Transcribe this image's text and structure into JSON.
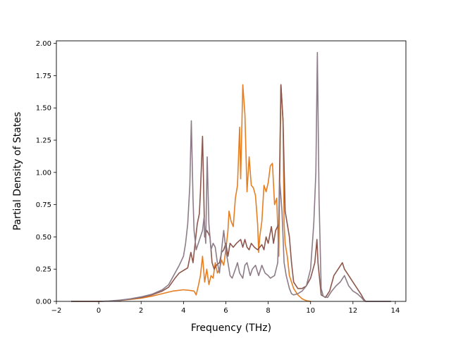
{
  "chart_data": {
    "type": "line",
    "title": "",
    "xlabel": "Frequency (THz)",
    "ylabel": "Partial Density of States",
    "xlim": [
      -2,
      14.5
    ],
    "ylim": [
      0,
      2.02
    ],
    "xticks": [
      "−2",
      "0",
      "2",
      "4",
      "6",
      "8",
      "10",
      "12",
      "14"
    ],
    "yticks": [
      "0.00",
      "0.25",
      "0.50",
      "0.75",
      "1.00",
      "1.25",
      "1.50",
      "1.75",
      "2.00"
    ],
    "grid": false,
    "legend": "none",
    "series": [
      {
        "color": "#e67e22",
        "points": [
          [
            -1.3,
            0
          ],
          [
            0,
            0
          ],
          [
            0.5,
            0.002
          ],
          [
            1,
            0.008
          ],
          [
            1.5,
            0.015
          ],
          [
            2,
            0.025
          ],
          [
            2.5,
            0.04
          ],
          [
            3,
            0.06
          ],
          [
            3.5,
            0.08
          ],
          [
            4,
            0.09
          ],
          [
            4.3,
            0.085
          ],
          [
            4.5,
            0.08
          ],
          [
            4.6,
            0.05
          ],
          [
            4.7,
            0.12
          ],
          [
            4.8,
            0.2
          ],
          [
            4.9,
            0.35
          ],
          [
            5.0,
            0.15
          ],
          [
            5.1,
            0.25
          ],
          [
            5.2,
            0.13
          ],
          [
            5.3,
            0.2
          ],
          [
            5.4,
            0.18
          ],
          [
            5.5,
            0.3
          ],
          [
            5.6,
            0.22
          ],
          [
            5.7,
            0.25
          ],
          [
            5.8,
            0.32
          ],
          [
            5.9,
            0.28
          ],
          [
            6.0,
            0.4
          ],
          [
            6.1,
            0.55
          ],
          [
            6.15,
            0.7
          ],
          [
            6.25,
            0.62
          ],
          [
            6.35,
            0.58
          ],
          [
            6.45,
            0.8
          ],
          [
            6.55,
            0.9
          ],
          [
            6.65,
            1.35
          ],
          [
            6.7,
            0.95
          ],
          [
            6.8,
            1.68
          ],
          [
            6.9,
            1.45
          ],
          [
            7.0,
            0.85
          ],
          [
            7.1,
            1.12
          ],
          [
            7.2,
            0.9
          ],
          [
            7.3,
            0.88
          ],
          [
            7.4,
            0.82
          ],
          [
            7.5,
            0.6
          ],
          [
            7.55,
            0.38
          ],
          [
            7.6,
            0.5
          ],
          [
            7.7,
            0.62
          ],
          [
            7.8,
            0.9
          ],
          [
            7.9,
            0.85
          ],
          [
            8.0,
            0.92
          ],
          [
            8.1,
            1.05
          ],
          [
            8.2,
            1.07
          ],
          [
            8.3,
            0.75
          ],
          [
            8.4,
            0.8
          ],
          [
            8.5,
            0.35
          ],
          [
            8.6,
            1.68
          ],
          [
            8.7,
            1.4
          ],
          [
            8.75,
            0.6
          ],
          [
            8.8,
            0.45
          ],
          [
            8.9,
            0.35
          ],
          [
            9.0,
            0.2
          ],
          [
            9.2,
            0.1
          ],
          [
            9.4,
            0.05
          ],
          [
            9.6,
            0.02
          ],
          [
            9.8,
            0.005
          ],
          [
            10,
            0
          ]
        ]
      },
      {
        "color": "#8c564b",
        "points": [
          [
            -1.3,
            0
          ],
          [
            0,
            0
          ],
          [
            0.5,
            0.002
          ],
          [
            1,
            0.008
          ],
          [
            1.5,
            0.018
          ],
          [
            2,
            0.03
          ],
          [
            2.5,
            0.05
          ],
          [
            3,
            0.08
          ],
          [
            3.3,
            0.11
          ],
          [
            3.6,
            0.18
          ],
          [
            3.8,
            0.22
          ],
          [
            4.0,
            0.24
          ],
          [
            4.2,
            0.26
          ],
          [
            4.35,
            0.38
          ],
          [
            4.45,
            0.3
          ],
          [
            4.55,
            0.45
          ],
          [
            4.65,
            0.6
          ],
          [
            4.75,
            0.68
          ],
          [
            4.8,
            0.85
          ],
          [
            4.9,
            1.28
          ],
          [
            4.95,
            0.9
          ],
          [
            5.0,
            0.5
          ],
          [
            5.1,
            0.55
          ],
          [
            5.2,
            0.52
          ],
          [
            5.25,
            0.5
          ],
          [
            5.35,
            0.3
          ],
          [
            5.45,
            0.25
          ],
          [
            5.55,
            0.28
          ],
          [
            5.7,
            0.3
          ],
          [
            5.8,
            0.38
          ],
          [
            5.9,
            0.4
          ],
          [
            6.0,
            0.45
          ],
          [
            6.1,
            0.35
          ],
          [
            6.2,
            0.45
          ],
          [
            6.35,
            0.42
          ],
          [
            6.5,
            0.45
          ],
          [
            6.7,
            0.48
          ],
          [
            6.8,
            0.42
          ],
          [
            6.9,
            0.48
          ],
          [
            7.0,
            0.42
          ],
          [
            7.1,
            0.4
          ],
          [
            7.2,
            0.45
          ],
          [
            7.35,
            0.42
          ],
          [
            7.5,
            0.4
          ],
          [
            7.6,
            0.42
          ],
          [
            7.7,
            0.44
          ],
          [
            7.8,
            0.4
          ],
          [
            7.9,
            0.5
          ],
          [
            8.0,
            0.45
          ],
          [
            8.15,
            0.58
          ],
          [
            8.25,
            0.45
          ],
          [
            8.35,
            0.55
          ],
          [
            8.5,
            0.6
          ],
          [
            8.6,
            1.68
          ],
          [
            8.7,
            1.4
          ],
          [
            8.8,
            0.7
          ],
          [
            8.9,
            0.6
          ],
          [
            9.0,
            0.5
          ],
          [
            9.1,
            0.3
          ],
          [
            9.2,
            0.15
          ],
          [
            9.4,
            0.1
          ],
          [
            9.6,
            0.1
          ],
          [
            9.8,
            0.12
          ],
          [
            10.0,
            0.18
          ],
          [
            10.2,
            0.3
          ],
          [
            10.3,
            0.48
          ],
          [
            10.35,
            0.3
          ],
          [
            10.5,
            0.05
          ],
          [
            10.7,
            0.03
          ],
          [
            10.9,
            0.08
          ],
          [
            11.1,
            0.2
          ],
          [
            11.3,
            0.25
          ],
          [
            11.5,
            0.3
          ],
          [
            11.6,
            0.25
          ],
          [
            11.8,
            0.2
          ],
          [
            12.0,
            0.15
          ],
          [
            12.2,
            0.1
          ],
          [
            12.4,
            0.05
          ],
          [
            12.5,
            0.02
          ],
          [
            12.6,
            0
          ],
          [
            13.8,
            0
          ]
        ]
      },
      {
        "color": "#8d7c88",
        "points": [
          [
            -1.3,
            0
          ],
          [
            0,
            0
          ],
          [
            0.5,
            0.003
          ],
          [
            1,
            0.01
          ],
          [
            1.5,
            0.02
          ],
          [
            2,
            0.035
          ],
          [
            2.5,
            0.055
          ],
          [
            3,
            0.09
          ],
          [
            3.3,
            0.13
          ],
          [
            3.6,
            0.22
          ],
          [
            3.8,
            0.28
          ],
          [
            4.0,
            0.35
          ],
          [
            4.1,
            0.45
          ],
          [
            4.2,
            0.6
          ],
          [
            4.3,
            0.9
          ],
          [
            4.37,
            1.4
          ],
          [
            4.45,
            0.8
          ],
          [
            4.5,
            0.55
          ],
          [
            4.6,
            0.4
          ],
          [
            4.7,
            0.45
          ],
          [
            4.8,
            0.5
          ],
          [
            4.9,
            0.55
          ],
          [
            4.97,
            0.65
          ],
          [
            5.05,
            0.45
          ],
          [
            5.12,
            1.12
          ],
          [
            5.2,
            0.6
          ],
          [
            5.3,
            0.4
          ],
          [
            5.4,
            0.45
          ],
          [
            5.5,
            0.42
          ],
          [
            5.6,
            0.3
          ],
          [
            5.7,
            0.22
          ],
          [
            5.8,
            0.4
          ],
          [
            5.9,
            0.55
          ],
          [
            6.0,
            0.4
          ],
          [
            6.1,
            0.3
          ],
          [
            6.2,
            0.2
          ],
          [
            6.3,
            0.18
          ],
          [
            6.45,
            0.25
          ],
          [
            6.55,
            0.3
          ],
          [
            6.65,
            0.22
          ],
          [
            6.8,
            0.18
          ],
          [
            6.9,
            0.28
          ],
          [
            7.0,
            0.3
          ],
          [
            7.15,
            0.2
          ],
          [
            7.25,
            0.25
          ],
          [
            7.4,
            0.28
          ],
          [
            7.55,
            0.2
          ],
          [
            7.7,
            0.28
          ],
          [
            7.85,
            0.22
          ],
          [
            8.0,
            0.2
          ],
          [
            8.1,
            0.18
          ],
          [
            8.3,
            0.2
          ],
          [
            8.45,
            0.3
          ],
          [
            8.55,
            0.92
          ],
          [
            8.65,
            0.7
          ],
          [
            8.75,
            0.3
          ],
          [
            8.85,
            0.2
          ],
          [
            9.0,
            0.1
          ],
          [
            9.1,
            0.06
          ],
          [
            9.2,
            0.05
          ],
          [
            9.4,
            0.06
          ],
          [
            9.6,
            0.08
          ],
          [
            9.8,
            0.12
          ],
          [
            10.0,
            0.25
          ],
          [
            10.15,
            0.6
          ],
          [
            10.25,
            1.0
          ],
          [
            10.32,
            1.93
          ],
          [
            10.4,
            0.8
          ],
          [
            10.5,
            0.1
          ],
          [
            10.6,
            0.04
          ],
          [
            10.8,
            0.03
          ],
          [
            11.0,
            0.08
          ],
          [
            11.2,
            0.12
          ],
          [
            11.4,
            0.15
          ],
          [
            11.6,
            0.2
          ],
          [
            11.8,
            0.12
          ],
          [
            12.0,
            0.08
          ],
          [
            12.2,
            0.06
          ],
          [
            12.4,
            0.03
          ],
          [
            12.5,
            0.01
          ],
          [
            12.6,
            0
          ],
          [
            13.8,
            0
          ]
        ]
      }
    ]
  }
}
